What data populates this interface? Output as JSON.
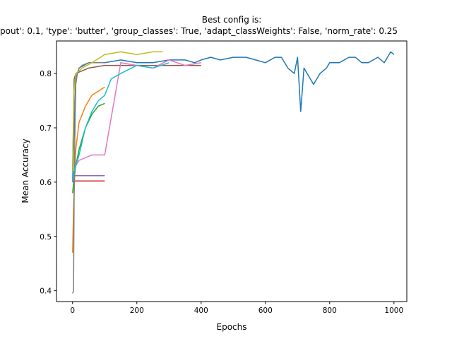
{
  "chart_data": {
    "type": "line",
    "title": "Best config is:",
    "subtitle": "pout': 0.1, 'type': 'butter', 'group_classes': True, 'adapt_classWeights': False, 'norm_rate': 0.25",
    "xlabel": "Epochs",
    "ylabel": "Mean Accuracy",
    "xlim": [
      -50,
      1040
    ],
    "ylim": [
      0.38,
      0.86
    ],
    "xticks": [
      0,
      200,
      400,
      600,
      800,
      1000
    ],
    "yticks": [
      0.4,
      0.5,
      0.6,
      0.7,
      0.8
    ],
    "grid": false,
    "legend": "none",
    "series": [
      {
        "color": "#1f77b4",
        "x": [
          0,
          5,
          10,
          20,
          50,
          100,
          150,
          200,
          250,
          300,
          350,
          380,
          400,
          430,
          460,
          500,
          540,
          570,
          600,
          630,
          650,
          670,
          690,
          700,
          710,
          720,
          730,
          750,
          770,
          790,
          800,
          830,
          860,
          880,
          900,
          920,
          950,
          970,
          990,
          1000
        ],
        "y": [
          0.6,
          0.7,
          0.79,
          0.81,
          0.82,
          0.82,
          0.825,
          0.82,
          0.82,
          0.825,
          0.825,
          0.82,
          0.825,
          0.83,
          0.825,
          0.83,
          0.83,
          0.825,
          0.82,
          0.83,
          0.83,
          0.81,
          0.8,
          0.83,
          0.73,
          0.81,
          0.8,
          0.78,
          0.8,
          0.81,
          0.82,
          0.82,
          0.83,
          0.83,
          0.82,
          0.82,
          0.83,
          0.82,
          0.84,
          0.835
        ]
      },
      {
        "color": "#ff7f0e",
        "x": [
          0,
          3,
          6,
          10,
          20,
          40,
          60,
          100
        ],
        "y": [
          0.47,
          0.55,
          0.6,
          0.66,
          0.71,
          0.74,
          0.76,
          0.775
        ]
      },
      {
        "color": "#2ca02c",
        "x": [
          0,
          5,
          10,
          20,
          40,
          60,
          80,
          100
        ],
        "y": [
          0.58,
          0.61,
          0.63,
          0.66,
          0.7,
          0.725,
          0.74,
          0.745
        ]
      },
      {
        "color": "#d62728",
        "x": [
          0,
          5,
          10,
          100
        ],
        "y": [
          0.6,
          0.602,
          0.602,
          0.602
        ]
      },
      {
        "color": "#9467bd",
        "x": [
          0,
          5,
          10,
          100
        ],
        "y": [
          0.61,
          0.612,
          0.612,
          0.612
        ]
      },
      {
        "color": "#8c564b",
        "x": [
          0,
          5,
          10,
          50,
          100,
          200,
          300,
          400
        ],
        "y": [
          0.62,
          0.79,
          0.8,
          0.81,
          0.815,
          0.815,
          0.815,
          0.815
        ]
      },
      {
        "color": "#e377c2",
        "x": [
          0,
          5,
          10,
          20,
          40,
          60,
          80,
          100,
          150,
          200,
          250,
          300,
          350,
          400
        ],
        "y": [
          0.6,
          0.62,
          0.63,
          0.64,
          0.645,
          0.65,
          0.65,
          0.65,
          0.82,
          0.815,
          0.81,
          0.825,
          0.815,
          0.82
        ]
      },
      {
        "color": "#7f7f7f",
        "x": [
          0,
          3,
          5,
          8,
          10,
          15,
          20,
          30,
          50,
          100
        ],
        "y": [
          0.395,
          0.4,
          0.58,
          0.72,
          0.78,
          0.8,
          0.81,
          0.815,
          0.82,
          0.82
        ]
      },
      {
        "color": "#bcbd22",
        "x": [
          0,
          5,
          10,
          30,
          60,
          100,
          150,
          200,
          250,
          280
        ],
        "y": [
          0.62,
          0.77,
          0.8,
          0.81,
          0.82,
          0.835,
          0.84,
          0.835,
          0.84,
          0.84
        ]
      },
      {
        "color": "#17becf",
        "x": [
          0,
          5,
          10,
          20,
          40,
          60,
          80,
          100,
          120,
          150,
          200,
          250,
          300
        ],
        "y": [
          0.6,
          0.62,
          0.63,
          0.65,
          0.7,
          0.73,
          0.75,
          0.76,
          0.79,
          0.8,
          0.815,
          0.81,
          0.82
        ]
      }
    ]
  }
}
